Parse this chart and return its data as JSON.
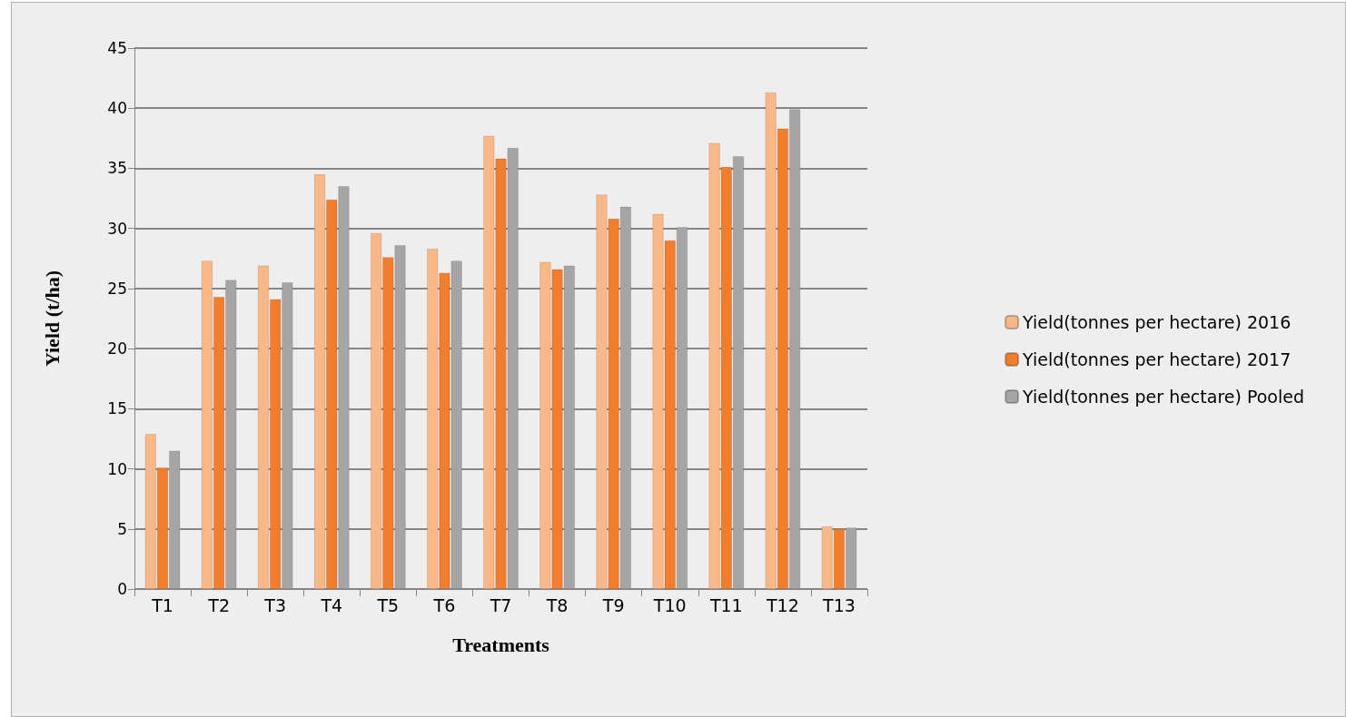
{
  "chart_data": {
    "type": "bar",
    "xlabel": "Treatments",
    "ylabel": "Yield (t/ha)",
    "categories": [
      "T1",
      "T2",
      "T3",
      "T4",
      "T5",
      "T6",
      "T7",
      "T8",
      "T9",
      "T10",
      "T11",
      "T12",
      "T13"
    ],
    "series": [
      {
        "name": "Yield(tonnes per hectare) 2016",
        "color": "#fbb887",
        "values": [
          12.9,
          27.3,
          26.9,
          34.5,
          29.6,
          28.3,
          37.7,
          27.2,
          32.8,
          31.2,
          37.1,
          41.3,
          5.2
        ]
      },
      {
        "name": "Yield(tonnes per hectare) 2017",
        "color": "#f47d2b",
        "values": [
          10.1,
          24.3,
          24.1,
          32.4,
          27.6,
          26.3,
          35.8,
          26.6,
          30.8,
          29.0,
          35.1,
          38.3,
          5.0
        ]
      },
      {
        "name": "Yield(tonnes per hectare) Pooled",
        "color": "#a5a5a5",
        "values": [
          11.5,
          25.7,
          25.5,
          33.5,
          28.6,
          27.3,
          36.7,
          26.9,
          31.8,
          30.1,
          36.0,
          39.9,
          5.1
        ]
      }
    ],
    "ylim": [
      0,
      45
    ],
    "yticks": [
      0,
      5,
      10,
      15,
      20,
      25,
      30,
      35,
      40,
      45
    ],
    "grid": "y",
    "legend": "right"
  }
}
